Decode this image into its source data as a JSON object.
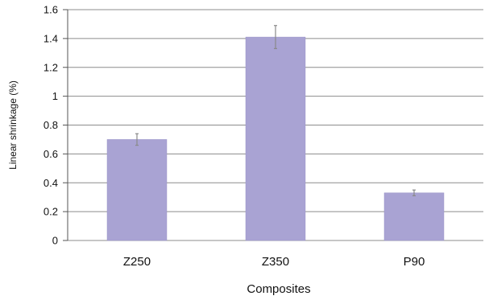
{
  "chart_data": {
    "type": "bar",
    "categories": [
      "Z250",
      "Z350",
      "P90"
    ],
    "values": [
      0.7,
      1.41,
      0.33
    ],
    "errors": [
      0.04,
      0.08,
      0.02
    ],
    "xlabel": "Composites",
    "ylabel": "Linear shrinkage (%)",
    "ylim": [
      0,
      1.6
    ],
    "yticks": [
      0,
      0.2,
      0.4,
      0.6,
      0.8,
      1,
      1.2,
      1.4,
      1.6
    ],
    "grid": true,
    "legend": "none",
    "colors": {
      "bar": "#a9a3d3",
      "bar_edge": "#9892c6",
      "error_bar": "#8a8a8a",
      "grid": "#8c8c8c",
      "axis": "#555555"
    }
  }
}
